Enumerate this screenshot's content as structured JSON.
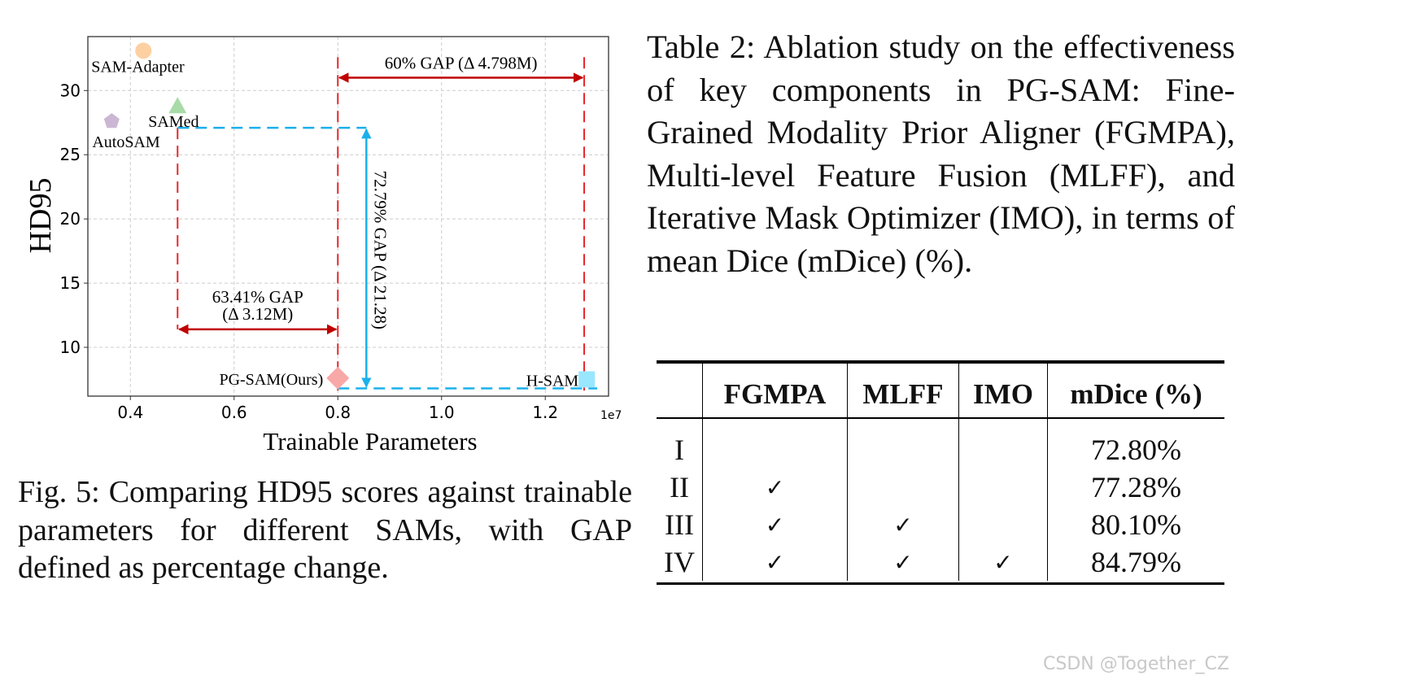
{
  "chart_data": {
    "type": "scatter",
    "xlabel": "Trainable Parameters",
    "ylabel": "HD95",
    "x_offset_label": "1e7",
    "xlim": [
      0.318,
      1.322
    ],
    "ylim": [
      6.2,
      34.2
    ],
    "x_ticks": [
      "0.4",
      "0.6",
      "0.8",
      "1.0",
      "1.2"
    ],
    "x_tick_values": [
      0.4,
      0.6,
      0.8,
      1.0,
      1.2
    ],
    "y_ticks": [
      "10",
      "15",
      "20",
      "25",
      "30"
    ],
    "y_tick_values": [
      10,
      15,
      20,
      25,
      30
    ],
    "grid": true,
    "points": [
      {
        "name": "SAM-Adapter",
        "x": 0.425,
        "y": 33.1,
        "marker": "circle",
        "color": "#fdd0a2"
      },
      {
        "name": "SAMed",
        "x": 0.491,
        "y": 28.8,
        "marker": "triangle",
        "color": "#a8dba8"
      },
      {
        "name": "AutoSAM",
        "x": 0.364,
        "y": 27.6,
        "marker": "pentagon",
        "color": "#cbb7d4"
      },
      {
        "name": "PG-SAM(Ours)",
        "x": 0.8,
        "y": 7.6,
        "marker": "diamond",
        "color": "#f9a8a8"
      },
      {
        "name": "H-SAM",
        "x": 1.28,
        "y": 7.5,
        "marker": "square",
        "color": "#99e6ff"
      }
    ],
    "annotations": [
      {
        "text": "60% GAP (Δ 4.798M)",
        "from_x": 0.8,
        "to_x": 1.275,
        "at_y": 31.0,
        "color": "#c00000"
      },
      {
        "text": "63.41% GAP",
        "text2": "(Δ 3.12M)",
        "from_x": 0.491,
        "to_x": 0.8,
        "at_y": 11.4,
        "color": "#c00000"
      },
      {
        "text": "72.79% GAP (Δ 21.28)",
        "from_y": 27.1,
        "to_y": 6.8,
        "at_x": 0.855,
        "color": "#1ab0ec"
      }
    ],
    "reference_lines_color_red": "#e8262a",
    "reference_lines_color_blue": "#1ab0ec"
  },
  "figure_caption": "Fig. 5: Comparing HD95 scores against trainable parameters for different SAMs, with GAP defined as percentage change.",
  "table_caption": "Table 2: Ablation study on the effectiveness of key components in PG-SAM: Fine-Grained Modality Prior Aligner (FGMPA), Multi-level Feature Fusion (MLFF), and Iterative Mask Optimizer (IMO), in terms of mean Dice (mDice) (%).",
  "table": {
    "headers": [
      "",
      "FGMPA",
      "MLFF",
      "IMO",
      "mDice (%)"
    ],
    "check_glyph": "✓",
    "rows": [
      {
        "id": "I",
        "fgmpa": "",
        "mlff": "",
        "imo": "",
        "mdice": "72.80%"
      },
      {
        "id": "II",
        "fgmpa": "✓",
        "mlff": "",
        "imo": "",
        "mdice": "77.28%"
      },
      {
        "id": "III",
        "fgmpa": "✓",
        "mlff": "✓",
        "imo": "",
        "mdice": "80.10%"
      },
      {
        "id": "IV",
        "fgmpa": "✓",
        "mlff": "✓",
        "imo": "✓",
        "mdice": "84.79%"
      }
    ]
  },
  "watermark": "CSDN @Together_CZ"
}
